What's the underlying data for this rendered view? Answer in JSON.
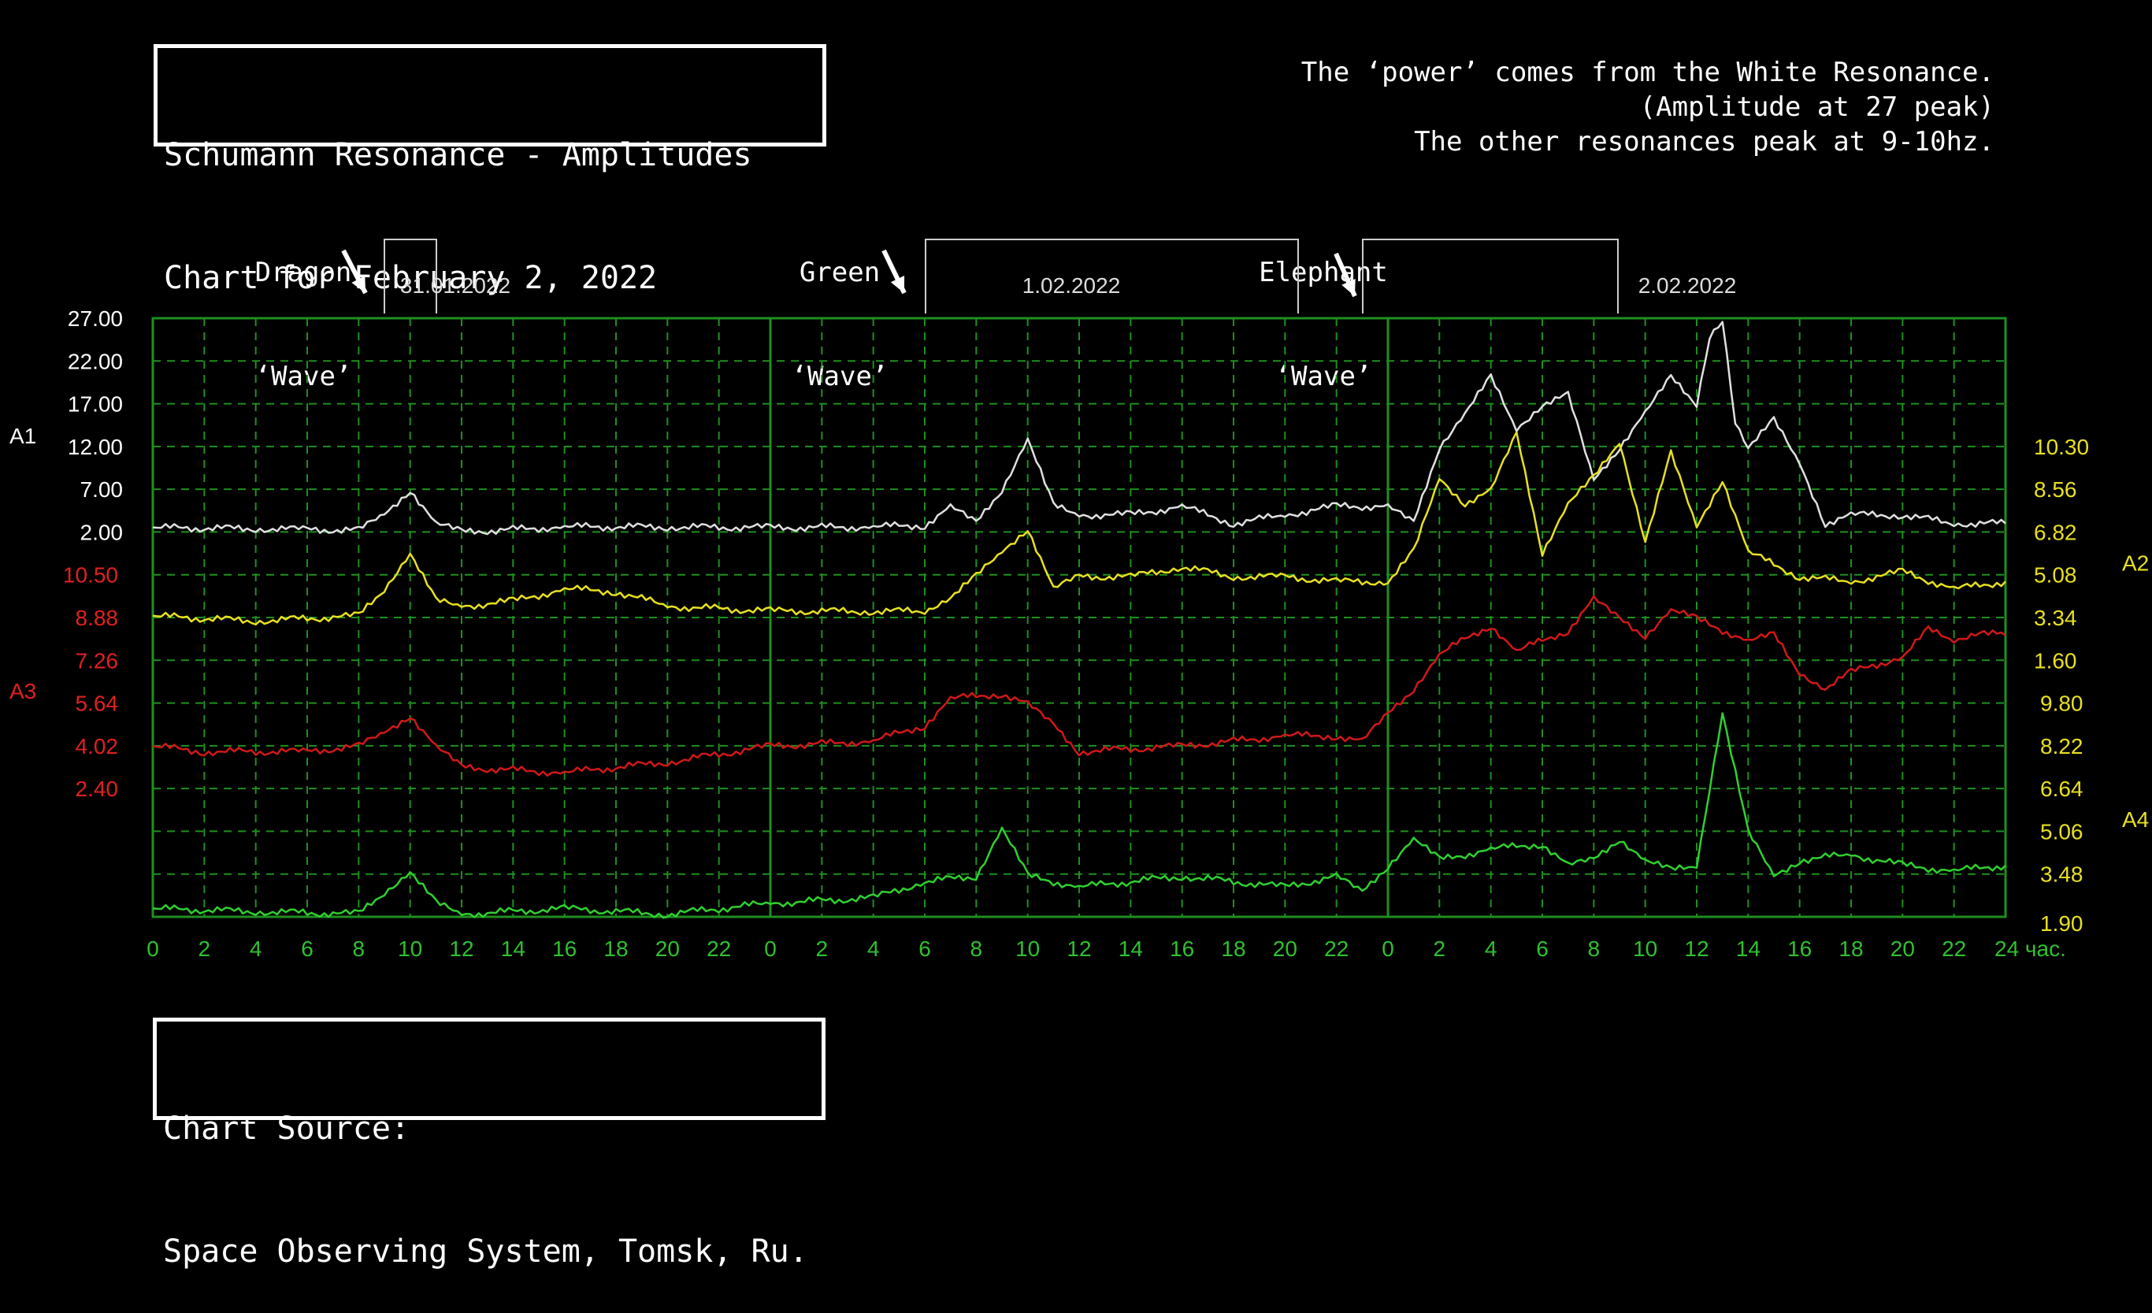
{
  "title_box": {
    "line1": "Schumann Resonance - Amplitudes",
    "line2": "Chart for February 2, 2022"
  },
  "note": {
    "line1": "The ‘power’ comes from the White Resonance.",
    "line2": "(Amplitude at 27 peak)",
    "line3": "The other resonances peak at 9-10hz."
  },
  "callouts": [
    {
      "line1": "Dragon",
      "line2": "‘Wave’"
    },
    {
      "line1": "Green",
      "line2": "‘Wave’"
    },
    {
      "line1": "Elephant",
      "line2": "‘Wave’"
    }
  ],
  "source_box": {
    "line1": "Chart Source:",
    "line2": "Space Observing System, Tomsk, Ru."
  },
  "colors": {
    "grid": "#1f8f1f",
    "a1": "#e0e0e0",
    "a2": "#e8e020",
    "a3": "#d01818",
    "a4": "#30d030",
    "axis_green": "#30c030"
  },
  "chart_data": {
    "type": "line",
    "dates": [
      "31.01.2022",
      "1.02.2022",
      "2.02.2022"
    ],
    "x_ticks": [
      "0",
      "2",
      "4",
      "6",
      "8",
      "10",
      "12",
      "14",
      "16",
      "18",
      "20",
      "22",
      "0",
      "2",
      "4",
      "6",
      "8",
      "10",
      "12",
      "14",
      "16",
      "18",
      "20",
      "22",
      "0",
      "2",
      "4",
      "6",
      "8",
      "10",
      "12",
      "14",
      "16",
      "18",
      "20",
      "22",
      "24 час."
    ],
    "axis_labels": {
      "a1": "A1",
      "a2": "A2",
      "a3": "A3",
      "a4": "A4"
    },
    "left_ticks_a1": [
      "27.00",
      "22.00",
      "17.00",
      "12.00",
      "7.00",
      "2.00"
    ],
    "left_ticks_a3": [
      "10.50",
      "8.88",
      "7.26",
      "5.64",
      "4.02",
      "2.40"
    ],
    "right_ticks_a2": [
      "10.30",
      "8.56",
      "6.82",
      "5.08",
      "3.34",
      "1.60"
    ],
    "right_ticks_a4": [
      "9.80",
      "8.22",
      "6.64",
      "5.06",
      "3.48",
      "1.90"
    ],
    "hours_total": 72,
    "series": [
      {
        "name": "A1",
        "color": "#e0e0e0",
        "points": [
          [
            0,
            2.5
          ],
          [
            4,
            2.4
          ],
          [
            6,
            2.3
          ],
          [
            8,
            2.2
          ],
          [
            9,
            4
          ],
          [
            10,
            7
          ],
          [
            11,
            3
          ],
          [
            12,
            2.0
          ],
          [
            16,
            2.6
          ],
          [
            20,
            2.6
          ],
          [
            24,
            2.5
          ],
          [
            28,
            2.6
          ],
          [
            30,
            2.8
          ],
          [
            31,
            5
          ],
          [
            32,
            3
          ],
          [
            33,
            7
          ],
          [
            34,
            13
          ],
          [
            35,
            5
          ],
          [
            36,
            4
          ],
          [
            38,
            4
          ],
          [
            40,
            5
          ],
          [
            42,
            3
          ],
          [
            44,
            4
          ],
          [
            46,
            5
          ],
          [
            48,
            5
          ],
          [
            49,
            3
          ],
          [
            50,
            12
          ],
          [
            51,
            16
          ],
          [
            52,
            20
          ],
          [
            53,
            14
          ],
          [
            54,
            17
          ],
          [
            55,
            18
          ],
          [
            56,
            8
          ],
          [
            57,
            12
          ],
          [
            58,
            16
          ],
          [
            59,
            20
          ],
          [
            60,
            17
          ],
          [
            60.5,
            25
          ],
          [
            61,
            27
          ],
          [
            61.5,
            15
          ],
          [
            62,
            12
          ],
          [
            63,
            15
          ],
          [
            64,
            10
          ],
          [
            65,
            3
          ],
          [
            66,
            4
          ],
          [
            68,
            4
          ],
          [
            70,
            3
          ],
          [
            72,
            3
          ]
        ]
      },
      {
        "name": "A2",
        "color": "#e8e020",
        "points": [
          [
            0,
            3.4
          ],
          [
            4,
            3.2
          ],
          [
            8,
            3.4
          ],
          [
            9,
            4.5
          ],
          [
            10,
            6
          ],
          [
            11,
            4
          ],
          [
            12,
            3.8
          ],
          [
            14,
            4
          ],
          [
            16,
            4.5
          ],
          [
            18,
            4.4
          ],
          [
            20,
            3.8
          ],
          [
            24,
            3.6
          ],
          [
            28,
            3.6
          ],
          [
            30,
            3.6
          ],
          [
            31,
            4.2
          ],
          [
            32,
            5
          ],
          [
            33,
            6
          ],
          [
            34,
            7
          ],
          [
            35,
            4.5
          ],
          [
            36,
            5
          ],
          [
            38,
            5
          ],
          [
            40,
            5.4
          ],
          [
            42,
            5.0
          ],
          [
            44,
            5.0
          ],
          [
            46,
            4.8
          ],
          [
            48,
            4.8
          ],
          [
            49,
            6
          ],
          [
            50,
            9
          ],
          [
            51,
            8
          ],
          [
            52,
            8.5
          ],
          [
            53,
            10.8
          ],
          [
            54,
            6
          ],
          [
            55,
            8
          ],
          [
            56,
            9
          ],
          [
            57,
            10.5
          ],
          [
            58,
            6.5
          ],
          [
            59,
            10
          ],
          [
            60,
            7
          ],
          [
            61,
            9
          ],
          [
            62,
            6
          ],
          [
            64,
            5
          ],
          [
            66,
            4.8
          ],
          [
            68,
            5.2
          ],
          [
            70,
            4.5
          ],
          [
            72,
            4.8
          ]
        ]
      },
      {
        "name": "A3",
        "color": "#d01818",
        "points": [
          [
            0,
            4.0
          ],
          [
            2,
            3.8
          ],
          [
            6,
            3.8
          ],
          [
            8,
            4.0
          ],
          [
            9,
            4.5
          ],
          [
            10,
            5.2
          ],
          [
            11,
            4.0
          ],
          [
            12,
            3.2
          ],
          [
            16,
            3.0
          ],
          [
            20,
            3.4
          ],
          [
            24,
            4.0
          ],
          [
            28,
            4.2
          ],
          [
            30,
            4.8
          ],
          [
            31,
            5.8
          ],
          [
            33,
            6.0
          ],
          [
            34,
            5.6
          ],
          [
            35,
            4.8
          ],
          [
            36,
            3.8
          ],
          [
            40,
            4.0
          ],
          [
            44,
            4.4
          ],
          [
            46,
            4.4
          ],
          [
            47,
            4.2
          ],
          [
            48,
            5.2
          ],
          [
            49,
            6.2
          ],
          [
            50,
            7.5
          ],
          [
            52,
            8.6
          ],
          [
            53,
            7.6
          ],
          [
            55,
            8.4
          ],
          [
            56,
            9.6
          ],
          [
            57,
            8.8
          ],
          [
            58,
            8.2
          ],
          [
            59,
            9.2
          ],
          [
            60,
            8.8
          ],
          [
            62,
            8.0
          ],
          [
            63,
            8.2
          ],
          [
            64,
            6.8
          ],
          [
            65,
            6.2
          ],
          [
            66,
            6.8
          ],
          [
            68,
            7.4
          ],
          [
            69,
            8.4
          ],
          [
            70,
            8.0
          ],
          [
            71,
            8.4
          ],
          [
            72,
            8.2
          ]
        ]
      },
      {
        "name": "A4",
        "color": "#30d030",
        "points": [
          [
            0,
            2.2
          ],
          [
            4,
            2.1
          ],
          [
            8,
            2.0
          ],
          [
            9,
            2.8
          ],
          [
            10,
            3.6
          ],
          [
            11,
            2.4
          ],
          [
            12,
            2.0
          ],
          [
            16,
            2.2
          ],
          [
            20,
            2.0
          ],
          [
            24,
            2.4
          ],
          [
            28,
            2.6
          ],
          [
            30,
            3.2
          ],
          [
            32,
            3.4
          ],
          [
            33,
            5.2
          ],
          [
            34,
            3.4
          ],
          [
            36,
            3.0
          ],
          [
            40,
            3.4
          ],
          [
            44,
            3.0
          ],
          [
            46,
            3.4
          ],
          [
            47,
            2.8
          ],
          [
            48,
            3.8
          ],
          [
            49,
            4.8
          ],
          [
            50,
            4.0
          ],
          [
            52,
            4.4
          ],
          [
            54,
            4.6
          ],
          [
            55,
            3.8
          ],
          [
            56,
            4.0
          ],
          [
            57,
            4.8
          ],
          [
            58,
            4.0
          ],
          [
            59,
            3.6
          ],
          [
            60,
            3.8
          ],
          [
            61,
            9.5
          ],
          [
            62,
            5.0
          ],
          [
            63,
            3.4
          ],
          [
            64,
            4.0
          ],
          [
            66,
            4.2
          ],
          [
            68,
            3.8
          ],
          [
            70,
            3.6
          ],
          [
            72,
            3.8
          ]
        ]
      }
    ]
  }
}
